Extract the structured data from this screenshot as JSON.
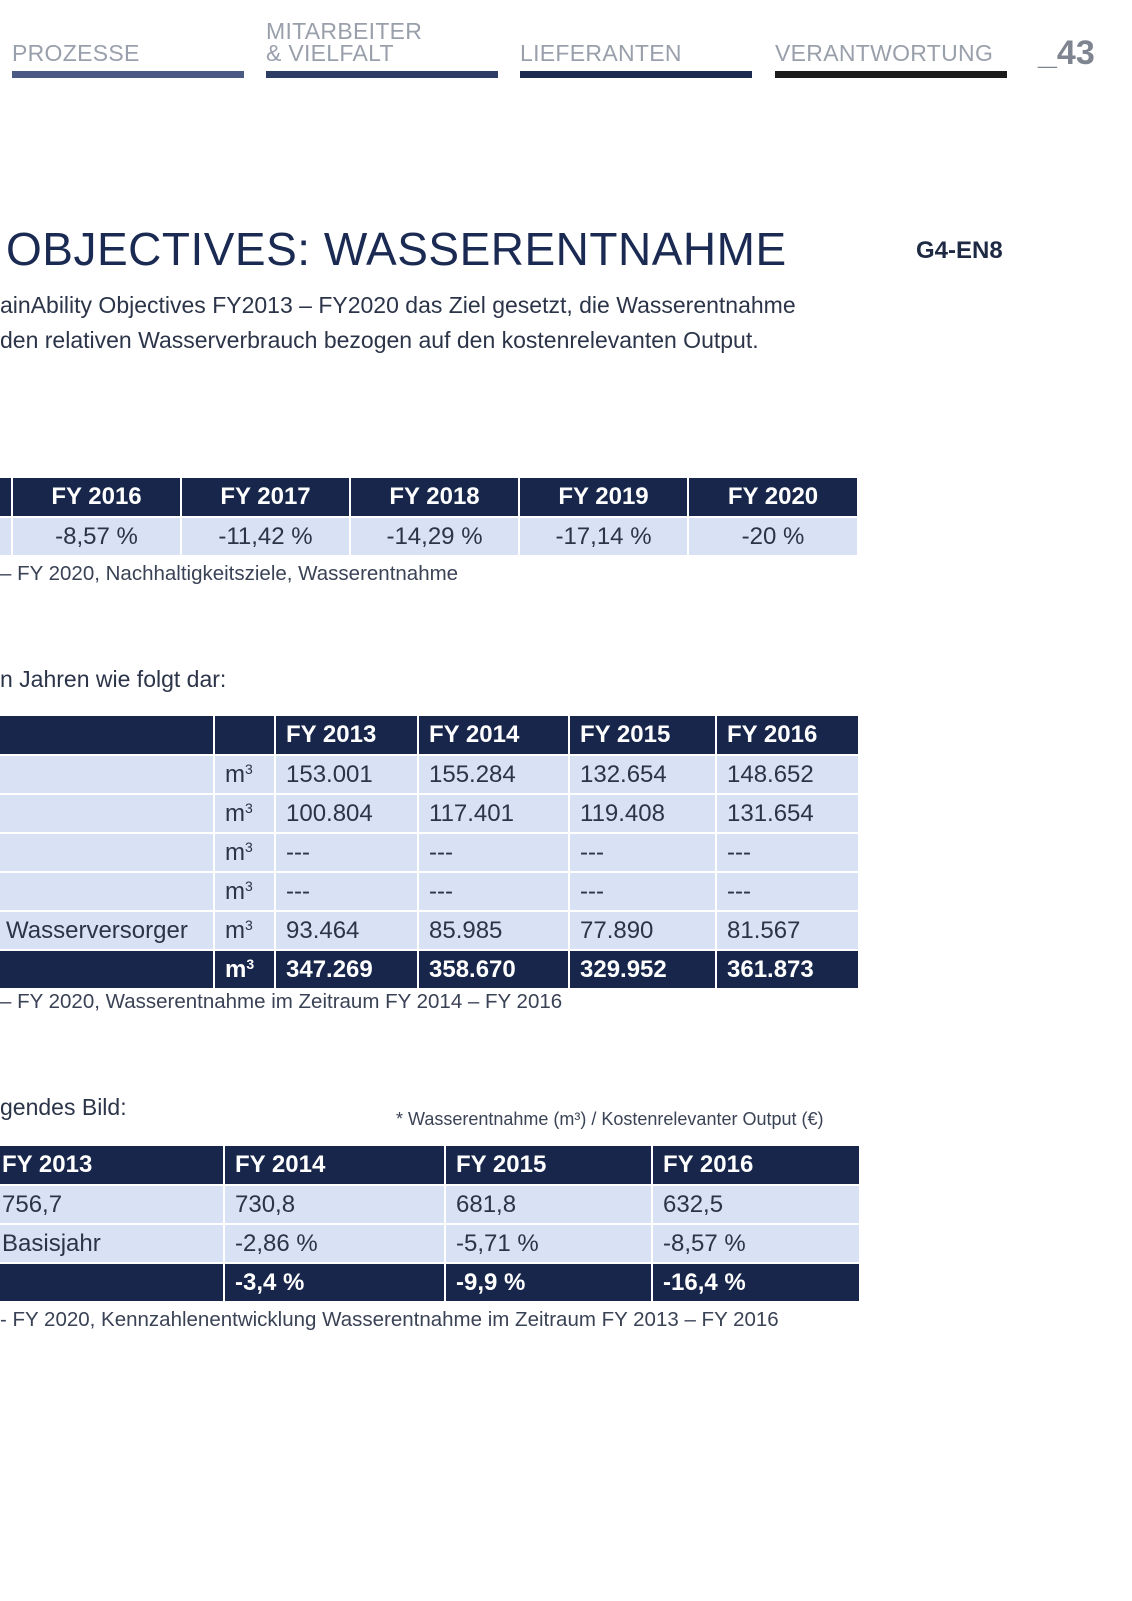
{
  "nav": {
    "tabs": [
      {
        "label": "PROZESSE",
        "color": "#4b5a85"
      },
      {
        "label": "MITARBEITER\n& VIELFALT",
        "color": "#2d3d66"
      },
      {
        "label": "LIEFERANTEN",
        "color": "#1b2a4f"
      },
      {
        "label": "VERANTWORTUNG",
        "color": "#1b1b1b"
      }
    ],
    "page_number": "_43"
  },
  "heading": "OBJECTIVES: WASSERENTNAHME",
  "gri_code": "G4-EN8",
  "intro": [
    "ainAbility Objectives FY2013 – FY2020 das Ziel gesetzt, die Wasserentnahme",
    "den relativen Wasserverbrauch bezogen auf den kostenrelevanten Output."
  ],
  "table1": {
    "headers": [
      "FY 2016",
      "FY 2017",
      "FY 2018",
      "FY 2019",
      "FY 2020"
    ],
    "values": [
      "-8,57 %",
      "-11,42 %",
      "-14,29 %",
      "-17,14 %",
      "-20 %"
    ],
    "caption": "– FY 2020, Nachhaltigkeitsziele, Wasserentnahme"
  },
  "lead2": "n Jahren wie folgt dar:",
  "table2": {
    "headers": [
      "",
      "",
      "FY 2013",
      "FY 2014",
      "FY 2015",
      "FY 2016"
    ],
    "unit": "m",
    "unit_sup": "3",
    "rows": [
      {
        "label": "",
        "values": [
          "153.001",
          "155.284",
          "132.654",
          "148.652"
        ]
      },
      {
        "label": "",
        "values": [
          "100.804",
          "117.401",
          "119.408",
          "131.654"
        ]
      },
      {
        "label": "",
        "values": [
          "---",
          "---",
          "---",
          "---"
        ]
      },
      {
        "label": "",
        "values": [
          "---",
          "---",
          "---",
          "---"
        ]
      },
      {
        "label": "Wasserversorger",
        "values": [
          "93.464",
          "85.985",
          "77.890",
          "81.567"
        ]
      }
    ],
    "total": {
      "label": "",
      "values": [
        "347.269",
        "358.670",
        "329.952",
        "361.873"
      ]
    },
    "caption": "– FY 2020, Wasserentnahme im Zeitraum FY 2014 – FY 2016"
  },
  "lead3": "gendes Bild:",
  "note3": "* Wasserentnahme (m³) / Kostenrelevanter Output (€)",
  "table3": {
    "headers": [
      "FY 2013",
      "FY 2014",
      "FY 2015",
      "FY 2016"
    ],
    "rows": [
      [
        "756,7",
        "730,8",
        "681,8",
        "632,5"
      ],
      [
        "Basisjahr",
        "-2,86 %",
        "-5,71 %",
        "-8,57 %"
      ]
    ],
    "total": [
      "",
      "-3,4 %",
      "-9,9 %",
      "-16,4 %"
    ],
    "caption": "- FY 2020, Kennzahlenentwicklung Wasserentnahme im Zeitraum FY 2013 – FY 2016"
  }
}
